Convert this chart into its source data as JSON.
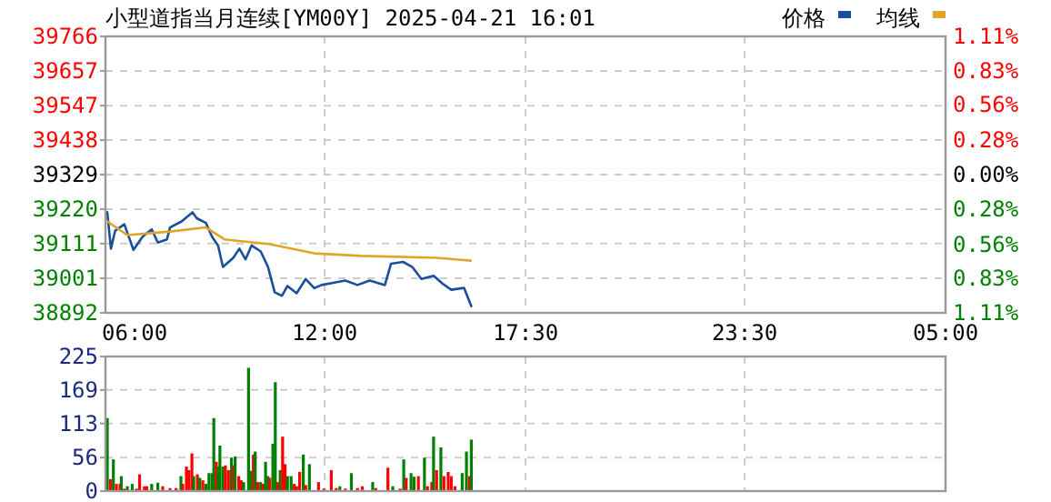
{
  "chart_data": [
    {
      "type": "line",
      "title": "小型道指当月连续[YM00Y] 2025-04-21 16:01",
      "legend": "top right",
      "grid": true,
      "xlim": [
        "2025-04-21T06:00",
        "2025-04-22T05:00"
      ],
      "xticks": [
        {
          "value": "2025-04-21T06:00",
          "label": "06:00"
        },
        {
          "value": "2025-04-21T12:00",
          "label": "12:00"
        },
        {
          "value": "2025-04-21T17:30",
          "label": "17:30"
        },
        {
          "value": "2025-04-21T23:30",
          "label": "23:30"
        },
        {
          "value": "2025-04-22T05:00",
          "label": "05:00"
        }
      ],
      "ylim": [
        38892,
        39766
      ],
      "yticks": [
        38892,
        39001,
        39111,
        39220,
        39329,
        39438,
        39547,
        39657,
        39766
      ],
      "y2lim": [
        -1.11,
        1.11
      ],
      "y2ticks": [
        {
          "value": -1.11,
          "label": "1.11%"
        },
        {
          "value": -0.83,
          "label": "0.83%"
        },
        {
          "value": -0.56,
          "label": "0.56%"
        },
        {
          "value": -0.28,
          "label": "0.28%"
        },
        {
          "value": 0,
          "label": "0.00%"
        },
        {
          "value": 0.28,
          "label": "0.28%"
        },
        {
          "value": 0.56,
          "label": "0.56%"
        },
        {
          "value": 0.83,
          "label": "0.83%"
        },
        {
          "value": 1.11,
          "label": "1.11%"
        }
      ],
      "series": [
        {
          "name": "价格",
          "color": "#1a4f9c",
          "x": [
            "2025-04-21T06:03",
            "2025-04-21T06:09",
            "2025-04-21T06:16",
            "2025-04-21T06:31",
            "2025-04-21T06:46",
            "2025-04-21T07:01",
            "2025-04-21T07:16",
            "2025-04-21T07:26",
            "2025-04-21T07:41",
            "2025-04-21T07:46",
            "2025-04-21T08:05",
            "2025-04-21T08:23",
            "2025-04-21T08:30",
            "2025-04-21T08:45",
            "2025-04-21T08:55",
            "2025-04-21T09:05",
            "2025-04-21T09:13",
            "2025-04-21T09:30",
            "2025-04-21T09:40",
            "2025-04-21T09:50",
            "2025-04-21T10:00",
            "2025-04-21T10:15",
            "2025-04-21T10:27",
            "2025-04-21T10:38",
            "2025-04-21T10:50",
            "2025-04-21T10:59",
            "2025-04-21T11:14",
            "2025-04-21T11:29",
            "2025-04-21T11:43",
            "2025-04-21T11:55",
            "2025-04-21T12:14",
            "2025-04-21T12:34",
            "2025-04-21T12:54",
            "2025-04-21T13:14",
            "2025-04-21T13:39",
            "2025-04-21T13:49",
            "2025-04-21T14:09",
            "2025-04-21T14:24",
            "2025-04-21T14:39",
            "2025-04-21T14:59",
            "2025-04-21T15:14",
            "2025-04-21T15:28",
            "2025-04-21T15:49",
            "2025-04-21T16:01"
          ],
          "values": [
            39210,
            39095,
            39152,
            39172,
            39091,
            39133,
            39156,
            39114,
            39124,
            39162,
            39181,
            39210,
            39191,
            39176,
            39133,
            39105,
            39037,
            39066,
            39095,
            39061,
            39105,
            39086,
            39037,
            38957,
            38946,
            38977,
            38954,
            38999,
            38970,
            38980,
            38987,
            38994,
            38980,
            38994,
            38980,
            39047,
            39053,
            39037,
            38999,
            39009,
            38984,
            38965,
            38971,
            38913
          ]
        },
        {
          "name": "均线",
          "color": "#e0a526",
          "x": [
            "2025-04-21T06:03",
            "2025-04-21T06:36",
            "2025-04-21T07:46",
            "2025-04-21T08:45",
            "2025-04-21T09:16",
            "2025-04-21T10:30",
            "2025-04-21T11:43",
            "2025-04-21T13:00",
            "2025-04-21T15:04",
            "2025-04-21T16:00"
          ],
          "values": [
            39181,
            39138,
            39149,
            39162,
            39124,
            39109,
            39080,
            39072,
            39066,
            39057
          ]
        }
      ]
    },
    {
      "type": "bar",
      "grid": true,
      "tick_labels": "y",
      "xlim": [
        "2025-04-21T06:00",
        "2025-04-22T05:00"
      ],
      "xticks": [
        {
          "value": "2025-04-21T06:00",
          "label": null
        },
        {
          "value": "2025-04-21T12:00",
          "label": null
        },
        {
          "value": "2025-04-21T17:30",
          "label": null
        },
        {
          "value": "2025-04-21T23:30",
          "label": null
        },
        {
          "value": "2025-04-22T05:00",
          "label": null
        }
      ],
      "ylim": [
        0,
        225
      ],
      "yticks": [
        0,
        56,
        113,
        169,
        225
      ],
      "x": [
        "2025-04-21T06:03",
        "2025-04-21T06:08",
        "2025-04-21T06:13",
        "2025-04-21T06:18",
        "2025-04-21T06:24",
        "2025-04-21T06:26",
        "2025-04-21T06:31",
        "2025-04-21T06:36",
        "2025-04-21T06:44",
        "2025-04-21T06:51",
        "2025-04-21T06:56",
        "2025-04-21T07:04",
        "2025-04-21T07:08",
        "2025-04-21T07:16",
        "2025-04-21T07:26",
        "2025-04-21T07:34",
        "2025-04-21T07:46",
        "2025-04-21T07:56",
        "2025-04-21T08:04",
        "2025-04-21T08:07",
        "2025-04-21T08:13",
        "2025-04-21T08:17",
        "2025-04-21T08:22",
        "2025-04-21T08:25",
        "2025-04-21T08:31",
        "2025-04-21T08:35",
        "2025-04-21T08:40",
        "2025-04-21T08:45",
        "2025-04-21T08:50",
        "2025-04-21T08:55",
        "2025-04-21T08:58",
        "2025-04-21T09:02",
        "2025-04-21T09:05",
        "2025-04-21T09:08",
        "2025-04-21T09:13",
        "2025-04-21T09:17",
        "2025-04-21T09:22",
        "2025-04-21T09:27",
        "2025-04-21T09:30",
        "2025-04-21T09:33",
        "2025-04-21T09:39",
        "2025-04-21T09:43",
        "2025-04-21T09:47",
        "2025-04-21T09:55",
        "2025-04-21T09:59",
        "2025-04-21T10:03",
        "2025-04-21T10:06",
        "2025-04-21T10:10",
        "2025-04-21T10:15",
        "2025-04-21T10:19",
        "2025-04-21T10:23",
        "2025-04-21T10:27",
        "2025-04-21T10:30",
        "2025-04-21T10:35",
        "2025-04-21T10:39",
        "2025-04-21T10:43",
        "2025-04-21T10:47",
        "2025-04-21T10:51",
        "2025-04-21T10:55",
        "2025-04-21T10:59",
        "2025-04-21T11:05",
        "2025-04-21T11:10",
        "2025-04-21T11:14",
        "2025-04-21T11:19",
        "2025-04-21T11:25",
        "2025-04-21T11:29",
        "2025-04-21T11:35",
        "2025-04-21T11:50",
        "2025-04-21T11:59",
        "2025-04-21T12:11",
        "2025-04-21T12:19",
        "2025-04-21T12:25",
        "2025-04-21T12:34",
        "2025-04-21T12:44",
        "2025-04-21T12:54",
        "2025-04-21T13:02",
        "2025-04-21T13:19",
        "2025-04-21T13:24",
        "2025-04-21T13:44",
        "2025-04-21T13:52",
        "2025-04-21T14:04",
        "2025-04-21T14:10",
        "2025-04-21T14:14",
        "2025-04-21T14:22",
        "2025-04-21T14:27",
        "2025-04-21T14:34",
        "2025-04-21T14:44",
        "2025-04-21T14:49",
        "2025-04-21T14:56",
        "2025-04-21T14:59",
        "2025-04-21T15:04",
        "2025-04-21T15:11",
        "2025-04-21T15:16",
        "2025-04-21T15:23",
        "2025-04-21T15:28",
        "2025-04-21T15:34",
        "2025-04-21T15:46",
        "2025-04-21T15:53",
        "2025-04-21T15:58",
        "2025-04-21T16:01"
      ],
      "values": [
        122,
        20,
        53,
        12,
        12,
        25,
        4,
        8,
        12,
        4,
        28,
        8,
        8,
        12,
        14,
        8,
        5,
        5,
        25,
        12,
        41,
        35,
        63,
        25,
        28,
        22,
        18,
        12,
        30,
        30,
        122,
        49,
        41,
        76,
        41,
        43,
        35,
        56,
        43,
        58,
        25,
        18,
        15,
        206,
        34,
        61,
        66,
        15,
        15,
        12,
        49,
        25,
        22,
        79,
        182,
        15,
        35,
        91,
        45,
        25,
        25,
        12,
        8,
        32,
        61,
        10,
        45,
        15,
        4,
        35,
        5,
        8,
        4,
        30,
        5,
        8,
        15,
        5,
        39,
        8,
        4,
        53,
        22,
        30,
        24,
        25,
        56,
        8,
        15,
        91,
        35,
        73,
        25,
        32,
        25,
        8,
        30,
        66,
        25,
        86
      ],
      "colors": [
        "#008000",
        "#ff0000",
        "#008000",
        "#ff0000",
        "#ff0000",
        "#008000",
        "#ff0000",
        "#008000",
        "#008000",
        "#ff0000",
        "#ff0000",
        "#ff0000",
        "#ff0000",
        "#008000",
        "#008000",
        "#ff0000",
        "#ff0000",
        "#ff0000",
        "#008000",
        "#ff0000",
        "#ff0000",
        "#ff0000",
        "#ff0000",
        "#008000",
        "#ff0000",
        "#008000",
        "#ff0000",
        "#008000",
        "#008000",
        "#008000",
        "#008000",
        "#ff0000",
        "#008000",
        "#008000",
        "#008000",
        "#ff0000",
        "#ff0000",
        "#008000",
        "#ff0000",
        "#008000",
        "#ff0000",
        "#ff0000",
        "#008000",
        "#008000",
        "#008000",
        "#ff0000",
        "#008000",
        "#ff0000",
        "#008000",
        "#ff0000",
        "#008000",
        "#008000",
        "#ff0000",
        "#008000",
        "#008000",
        "#ff0000",
        "#008000",
        "#ff0000",
        "#ff0000",
        "#008000",
        "#008000",
        "#ff0000",
        "#ff0000",
        "#ff0000",
        "#008000",
        "#ff0000",
        "#008000",
        "#ff0000",
        "#ff0000",
        "#ff0000",
        "#ff0000",
        "#008000",
        "#ff0000",
        "#008000",
        "#ff0000",
        "#ff0000",
        "#008000",
        "#ff0000",
        "#ff0000",
        "#008000",
        "#ff0000",
        "#008000",
        "#ff0000",
        "#008000",
        "#008000",
        "#ff0000",
        "#008000",
        "#ff0000",
        "#ff0000",
        "#008000",
        "#ff0000",
        "#008000",
        "#ff0000",
        "#ff0000",
        "#ff0000",
        "#ff0000",
        "#008000",
        "#008000",
        "#ff0000",
        "#008000"
      ]
    }
  ]
}
